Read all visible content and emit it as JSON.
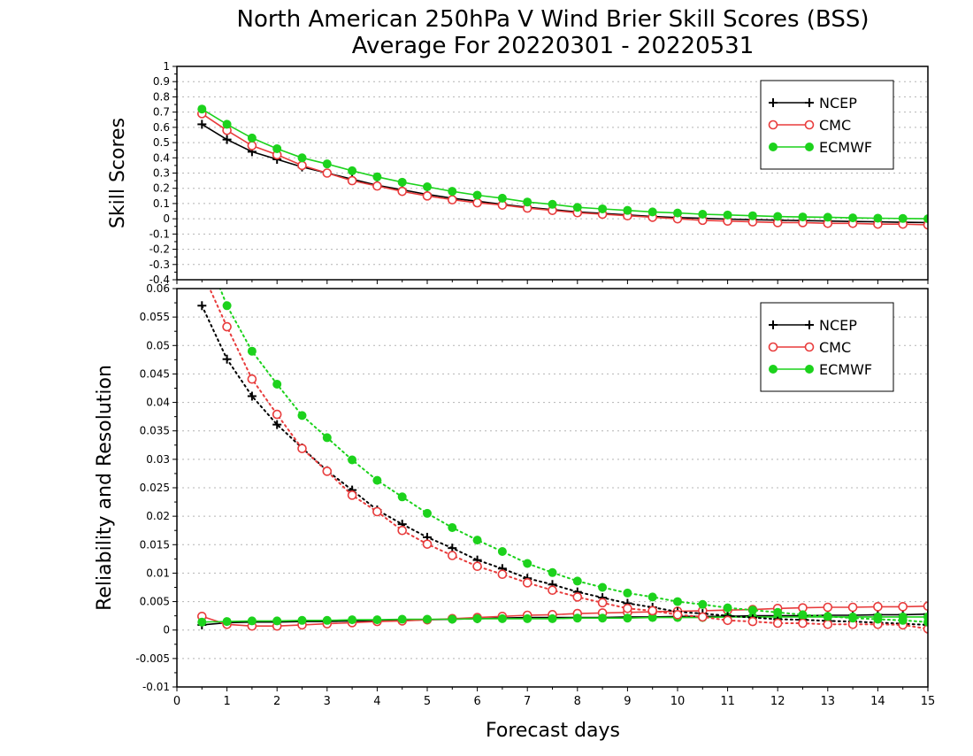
{
  "page": {
    "title_line1": "North American 250hPa V Wind Brier Skill Scores (BSS)",
    "title_line2": "Average For 20220301 - 20220531",
    "xlabel": "Forecast days"
  },
  "colors": {
    "NCEP": "#000000",
    "CMC": "#e83c3c",
    "ECMWF": "#1cd21c",
    "grid": "#b4b4b4"
  },
  "icons": {
    "NCEP": "plus-marker",
    "CMC": "open-circle-marker",
    "ECMWF": "filled-circle-marker"
  },
  "chart_data": [
    {
      "type": "line",
      "ylabel": "Skill Scores",
      "xlim": [
        0,
        15
      ],
      "ylim": [
        -0.4,
        1
      ],
      "yticks": [
        "-0.4",
        "-0.3",
        "-0.2",
        "-0.1",
        "0",
        "0.1",
        "0.2",
        "0.3",
        "0.4",
        "0.5",
        "0.6",
        "0.7",
        "0.8",
        "0.9",
        "1"
      ],
      "xticks": [
        "0",
        "1",
        "2",
        "3",
        "4",
        "5",
        "6",
        "7",
        "8",
        "9",
        "10",
        "11",
        "12",
        "13",
        "14",
        "15"
      ],
      "grid": "horizontal dotted",
      "legend": "top-right",
      "x": [
        0.5,
        1,
        1.5,
        2,
        2.5,
        3,
        3.5,
        4,
        4.5,
        5,
        5.5,
        6,
        6.5,
        7,
        7.5,
        8,
        8.5,
        9,
        9.5,
        10,
        10.5,
        11,
        11.5,
        12,
        12.5,
        13,
        13.5,
        14,
        14.5,
        15
      ],
      "series": [
        {
          "name": "NCEP",
          "values": [
            0.62,
            0.52,
            0.44,
            0.39,
            0.34,
            0.3,
            0.26,
            0.22,
            0.19,
            0.16,
            0.135,
            0.115,
            0.095,
            0.075,
            0.06,
            0.045,
            0.035,
            0.025,
            0.015,
            0.008,
            0.003,
            -0.002,
            -0.006,
            -0.009,
            -0.012,
            -0.015,
            -0.018,
            -0.02,
            -0.023,
            -0.025
          ]
        },
        {
          "name": "CMC",
          "values": [
            0.69,
            0.58,
            0.48,
            0.42,
            0.35,
            0.3,
            0.25,
            0.215,
            0.18,
            0.15,
            0.125,
            0.105,
            0.09,
            0.07,
            0.055,
            0.04,
            0.03,
            0.02,
            0.01,
            0.0,
            -0.01,
            -0.015,
            -0.02,
            -0.025,
            -0.025,
            -0.03,
            -0.03,
            -0.035,
            -0.035,
            -0.04
          ]
        },
        {
          "name": "ECMWF",
          "values": [
            0.72,
            0.62,
            0.53,
            0.46,
            0.4,
            0.36,
            0.315,
            0.275,
            0.24,
            0.21,
            0.18,
            0.155,
            0.135,
            0.11,
            0.095,
            0.075,
            0.065,
            0.055,
            0.045,
            0.038,
            0.03,
            0.025,
            0.02,
            0.015,
            0.012,
            0.01,
            0.006,
            0.004,
            0.002,
            0.0
          ]
        }
      ]
    },
    {
      "type": "line",
      "ylabel": "Reliability and Resolution",
      "xlim": [
        0,
        15
      ],
      "ylim": [
        -0.01,
        0.06
      ],
      "yticks": [
        "-0.01",
        "-0.005",
        "0",
        "0.005",
        "0.01",
        "0.015",
        "0.02",
        "0.025",
        "0.03",
        "0.035",
        "0.04",
        "0.045",
        "0.05",
        "0.055",
        "0.06"
      ],
      "xticks": [
        "0",
        "1",
        "2",
        "3",
        "4",
        "5",
        "6",
        "7",
        "8",
        "9",
        "10",
        "11",
        "12",
        "13",
        "14",
        "15"
      ],
      "grid": "horizontal dotted",
      "legend": "top-right",
      "x": [
        0.5,
        1,
        1.5,
        2,
        2.5,
        3,
        3.5,
        4,
        4.5,
        5,
        5.5,
        6,
        6.5,
        7,
        7.5,
        8,
        8.5,
        9,
        9.5,
        10,
        10.5,
        11,
        11.5,
        12,
        12.5,
        13,
        13.5,
        14,
        14.5,
        15
      ],
      "series": [
        {
          "name": "NCEP",
          "kind": "reliability",
          "values": [
            0.0009,
            0.0013,
            0.0014,
            0.0014,
            0.0015,
            0.0015,
            0.0016,
            0.0016,
            0.0017,
            0.0018,
            0.0019,
            0.002,
            0.0021,
            0.0022,
            0.0022,
            0.0022,
            0.0022,
            0.0023,
            0.0023,
            0.0024,
            0.0024,
            0.0024,
            0.0025,
            0.0025,
            0.0025,
            0.0026,
            0.0026,
            0.0027,
            0.0027,
            0.0028
          ]
        },
        {
          "name": "CMC",
          "kind": "reliability",
          "values": [
            0.0024,
            0.001,
            0.0007,
            0.0007,
            0.0009,
            0.0011,
            0.0013,
            0.0015,
            0.0016,
            0.0018,
            0.002,
            0.0022,
            0.0024,
            0.0026,
            0.0027,
            0.0029,
            0.003,
            0.0031,
            0.0032,
            0.0033,
            0.0034,
            0.0035,
            0.0036,
            0.0038,
            0.0039,
            0.004,
            0.004,
            0.0041,
            0.0041,
            0.0042
          ]
        },
        {
          "name": "ECMWF",
          "kind": "reliability",
          "values": [
            0.0014,
            0.0015,
            0.0016,
            0.0016,
            0.0017,
            0.0017,
            0.0018,
            0.0018,
            0.0019,
            0.0019,
            0.0019,
            0.002,
            0.002,
            0.002,
            0.002,
            0.0021,
            0.0021,
            0.0021,
            0.0022,
            0.0022,
            0.0022,
            0.0023,
            0.0023,
            0.0023,
            0.0023,
            0.0023,
            0.0023,
            0.0023,
            0.0023,
            0.0023
          ]
        },
        {
          "name": "NCEP",
          "kind": "resolution",
          "values": [
            0.057,
            0.0476,
            0.0411,
            0.0361,
            0.032,
            0.028,
            0.0246,
            0.0211,
            0.0186,
            0.0163,
            0.0144,
            0.0123,
            0.0108,
            0.0091,
            0.008,
            0.0067,
            0.0057,
            0.0047,
            0.004,
            0.0032,
            0.0029,
            0.0025,
            0.0022,
            0.0019,
            0.0018,
            0.0016,
            0.0015,
            0.0013,
            0.0011,
            0.0009
          ]
        },
        {
          "name": "CMC",
          "kind": "resolution",
          "values": [
            0.063,
            0.0533,
            0.0441,
            0.0379,
            0.0319,
            0.0279,
            0.0237,
            0.0208,
            0.0175,
            0.0151,
            0.0131,
            0.0112,
            0.0098,
            0.0083,
            0.007,
            0.0058,
            0.0048,
            0.0038,
            0.0034,
            0.0027,
            0.0023,
            0.0017,
            0.0015,
            0.0012,
            0.0012,
            0.001,
            0.001,
            0.001,
            0.0009,
            0.0002
          ]
        },
        {
          "name": "ECMWF",
          "kind": "resolution",
          "values": [
            0.068,
            0.057,
            0.049,
            0.0432,
            0.0377,
            0.0338,
            0.0299,
            0.0263,
            0.0234,
            0.0205,
            0.018,
            0.0158,
            0.0138,
            0.0117,
            0.0101,
            0.0086,
            0.0075,
            0.0065,
            0.0058,
            0.005,
            0.0045,
            0.0039,
            0.0035,
            0.0031,
            0.0027,
            0.0024,
            0.0021,
            0.0019,
            0.0017,
            0.0014
          ]
        }
      ]
    }
  ]
}
